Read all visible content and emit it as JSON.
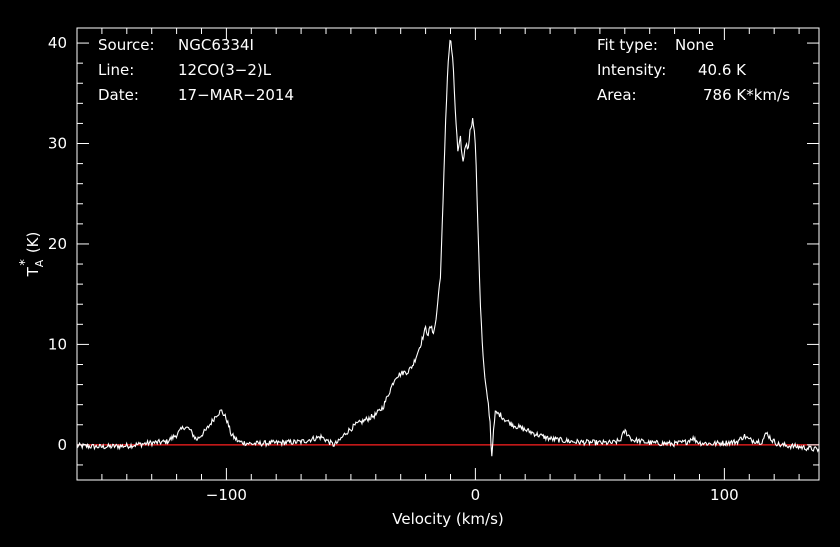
{
  "info_left": {
    "source_label": "Source:",
    "source_value": "NGC6334I",
    "line_label": "Line:",
    "line_value": "12CO(3−2)L",
    "date_label": "Date:",
    "date_value": "17−MAR−2014"
  },
  "info_right": {
    "fit_type_label": "Fit type:",
    "fit_type_value": "None",
    "intensity_label": "Intensity:",
    "intensity_value": "40.6 K",
    "area_label": "Area:",
    "area_value": "786 K*km/s"
  },
  "colors": {
    "background": "#000000",
    "foreground": "#ffffff",
    "baseline": "#ff2020"
  },
  "chart_data": {
    "type": "line",
    "title": "",
    "xlabel": "Velocity (km/s)",
    "ylabel_main": "T",
    "ylabel_sub": "A",
    "ylabel_sup": "*",
    "ylabel_unit": "(K)",
    "xlim": [
      -160,
      138
    ],
    "ylim": [
      -3.5,
      41.5
    ],
    "x_ticks": [
      -100,
      0,
      100
    ],
    "x_tick_labels": [
      "−100",
      "0",
      "100"
    ],
    "y_ticks": [
      0,
      10,
      20,
      30,
      40
    ],
    "y_tick_labels": [
      "0",
      "10",
      "20",
      "30",
      "40"
    ],
    "baseline": 0,
    "series": [
      {
        "x": [
          -160,
          -150,
          -140,
          -130,
          -124,
          -120,
          -117,
          -115,
          -112,
          -108,
          -104,
          -102,
          -100,
          -98,
          -95,
          -90,
          -80,
          -70,
          -62,
          -60,
          -57,
          -55,
          -52,
          -48,
          -44,
          -40,
          -37,
          -35,
          -32,
          -29,
          -27,
          -25,
          -22,
          -20,
          -19,
          -18,
          -17,
          -16,
          -15,
          -14,
          -13,
          -12,
          -11,
          -10,
          -9,
          -8,
          -7,
          -6,
          -5,
          -4,
          -3,
          -2,
          -1,
          0,
          1,
          2,
          3,
          4,
          5,
          6,
          6.5,
          7,
          8,
          10,
          12,
          15,
          20,
          25,
          30,
          40,
          50,
          55,
          58,
          60,
          63,
          70,
          80,
          85,
          87,
          90,
          95,
          100,
          105,
          108,
          110,
          115,
          117,
          119,
          122,
          130,
          138
        ],
        "y": [
          -0.1,
          -0.2,
          -0.1,
          0.2,
          0.3,
          1.0,
          1.8,
          1.6,
          0.5,
          1.5,
          3.0,
          3.4,
          2.6,
          1.0,
          0.3,
          0.1,
          0.2,
          0.3,
          0.8,
          0.5,
          0.0,
          0.3,
          1.2,
          2.0,
          2.5,
          3.0,
          3.8,
          5.0,
          6.8,
          7.2,
          7.3,
          8.0,
          10.0,
          11.6,
          11.0,
          11.8,
          11.2,
          12.0,
          14.5,
          17.0,
          24.0,
          32.0,
          38.0,
          40.6,
          38.0,
          33.0,
          29.0,
          30.5,
          28.0,
          30.0,
          29.5,
          31.5,
          32.5,
          30.0,
          22.0,
          14.0,
          9.0,
          6.0,
          4.5,
          2.0,
          -1.5,
          0.5,
          3.2,
          3.0,
          2.5,
          2.0,
          1.5,
          1.0,
          0.6,
          0.3,
          0.2,
          0.2,
          0.4,
          1.4,
          0.5,
          0.2,
          0.1,
          0.3,
          0.7,
          0.2,
          0.1,
          0.2,
          0.3,
          0.9,
          0.5,
          0.3,
          1.2,
          0.5,
          0.0,
          -0.2,
          -0.5
        ]
      }
    ]
  }
}
